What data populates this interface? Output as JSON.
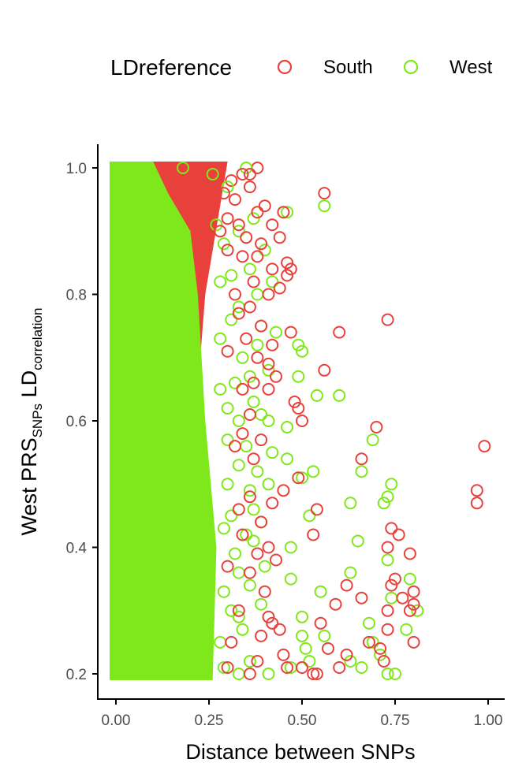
{
  "chart_data": {
    "type": "scatter",
    "xlabel": "Distance between SNPs",
    "ylabel": {
      "prefix": "West PRS",
      "prefix_sub": "SNPs",
      "main": " LD",
      "main_sub": "correlation"
    },
    "xlim": [
      0,
      1
    ],
    "ylim": [
      0.2,
      1.0
    ],
    "x_ticks": [
      "0.00",
      "0.25",
      "0.50",
      "0.75",
      "1.00"
    ],
    "x_tick_values": [
      0,
      0.25,
      0.5,
      0.75,
      1.0
    ],
    "y_ticks": [
      "0.2",
      "0.4",
      "0.6",
      "0.8",
      "1.0"
    ],
    "y_tick_values": [
      0.2,
      0.4,
      0.6,
      0.8,
      1.0
    ],
    "grid": false,
    "legend": {
      "title": "LDreference",
      "position": "top",
      "entries": [
        {
          "label": "South",
          "color": "#e8413c"
        },
        {
          "label": "West",
          "color": "#7fe81a"
        }
      ]
    },
    "series": [
      {
        "name": "South",
        "color": "#e8413c",
        "points": [
          [
            0.38,
            1.0
          ],
          [
            0.36,
            0.99
          ],
          [
            0.34,
            0.99
          ],
          [
            0.31,
            0.98
          ],
          [
            0.36,
            0.97
          ],
          [
            0.29,
            0.96
          ],
          [
            0.56,
            0.96
          ],
          [
            0.32,
            0.95
          ],
          [
            0.4,
            0.94
          ],
          [
            0.38,
            0.93
          ],
          [
            0.45,
            0.93
          ],
          [
            0.3,
            0.92
          ],
          [
            0.33,
            0.91
          ],
          [
            0.42,
            0.91
          ],
          [
            0.28,
            0.9
          ],
          [
            0.44,
            0.89
          ],
          [
            0.35,
            0.89
          ],
          [
            0.39,
            0.88
          ],
          [
            0.3,
            0.87
          ],
          [
            0.34,
            0.86
          ],
          [
            0.38,
            0.86
          ],
          [
            0.46,
            0.85
          ],
          [
            0.47,
            0.84
          ],
          [
            0.42,
            0.84
          ],
          [
            0.46,
            0.83
          ],
          [
            0.37,
            0.82
          ],
          [
            0.44,
            0.81
          ],
          [
            0.32,
            0.8
          ],
          [
            0.41,
            0.8
          ],
          [
            0.36,
            0.78
          ],
          [
            0.33,
            0.77
          ],
          [
            0.73,
            0.76
          ],
          [
            0.39,
            0.75
          ],
          [
            0.47,
            0.74
          ],
          [
            0.6,
            0.74
          ],
          [
            0.35,
            0.73
          ],
          [
            0.42,
            0.72
          ],
          [
            0.3,
            0.71
          ],
          [
            0.38,
            0.7
          ],
          [
            0.41,
            0.69
          ],
          [
            0.56,
            0.68
          ],
          [
            0.43,
            0.67
          ],
          [
            0.37,
            0.66
          ],
          [
            0.34,
            0.65
          ],
          [
            0.41,
            0.65
          ],
          [
            0.48,
            0.63
          ],
          [
            0.49,
            0.62
          ],
          [
            0.5,
            0.6
          ],
          [
            0.36,
            0.61
          ],
          [
            0.7,
            0.59
          ],
          [
            0.34,
            0.58
          ],
          [
            0.39,
            0.57
          ],
          [
            0.32,
            0.56
          ],
          [
            0.66,
            0.54
          ],
          [
            0.37,
            0.54
          ],
          [
            0.99,
            0.56
          ],
          [
            0.49,
            0.51
          ],
          [
            0.45,
            0.49
          ],
          [
            0.97,
            0.49
          ],
          [
            0.97,
            0.47
          ],
          [
            0.36,
            0.48
          ],
          [
            0.42,
            0.47
          ],
          [
            0.33,
            0.46
          ],
          [
            0.54,
            0.46
          ],
          [
            0.39,
            0.44
          ],
          [
            0.34,
            0.42
          ],
          [
            0.53,
            0.42
          ],
          [
            0.74,
            0.43
          ],
          [
            0.76,
            0.42
          ],
          [
            0.73,
            0.4
          ],
          [
            0.79,
            0.39
          ],
          [
            0.41,
            0.4
          ],
          [
            0.38,
            0.39
          ],
          [
            0.43,
            0.38
          ],
          [
            0.3,
            0.37
          ],
          [
            0.36,
            0.36
          ],
          [
            0.75,
            0.35
          ],
          [
            0.74,
            0.34
          ],
          [
            0.62,
            0.34
          ],
          [
            0.4,
            0.33
          ],
          [
            0.8,
            0.33
          ],
          [
            0.77,
            0.32
          ],
          [
            0.66,
            0.32
          ],
          [
            0.8,
            0.31
          ],
          [
            0.59,
            0.31
          ],
          [
            0.33,
            0.3
          ],
          [
            0.73,
            0.3
          ],
          [
            0.79,
            0.3
          ],
          [
            0.41,
            0.29
          ],
          [
            0.42,
            0.28
          ],
          [
            0.55,
            0.28
          ],
          [
            0.73,
            0.27
          ],
          [
            0.44,
            0.27
          ],
          [
            0.39,
            0.26
          ],
          [
            0.8,
            0.25
          ],
          [
            0.68,
            0.25
          ],
          [
            0.31,
            0.25
          ],
          [
            0.71,
            0.24
          ],
          [
            0.57,
            0.24
          ],
          [
            0.45,
            0.23
          ],
          [
            0.62,
            0.23
          ],
          [
            0.38,
            0.22
          ],
          [
            0.5,
            0.21
          ],
          [
            0.54,
            0.2
          ],
          [
            0.46,
            0.21
          ],
          [
            0.6,
            0.21
          ],
          [
            0.72,
            0.22
          ],
          [
            0.36,
            0.2
          ],
          [
            0.3,
            0.21
          ],
          [
            0.53,
            0.2
          ]
        ]
      },
      {
        "name": "West",
        "color": "#7fe81a",
        "points": [
          [
            0.35,
            1.0
          ],
          [
            0.26,
            0.99
          ],
          [
            0.18,
            1.0
          ],
          [
            0.3,
            0.97
          ],
          [
            0.37,
            0.92
          ],
          [
            0.56,
            0.94
          ],
          [
            0.46,
            0.93
          ],
          [
            0.27,
            0.91
          ],
          [
            0.33,
            0.9
          ],
          [
            0.29,
            0.88
          ],
          [
            0.4,
            0.87
          ],
          [
            0.36,
            0.84
          ],
          [
            0.31,
            0.83
          ],
          [
            0.28,
            0.82
          ],
          [
            0.42,
            0.82
          ],
          [
            0.38,
            0.8
          ],
          [
            0.33,
            0.78
          ],
          [
            0.31,
            0.76
          ],
          [
            0.39,
            0.75
          ],
          [
            0.43,
            0.74
          ],
          [
            0.28,
            0.73
          ],
          [
            0.49,
            0.72
          ],
          [
            0.5,
            0.71
          ],
          [
            0.38,
            0.72
          ],
          [
            0.34,
            0.7
          ],
          [
            0.41,
            0.68
          ],
          [
            0.36,
            0.67
          ],
          [
            0.49,
            0.67
          ],
          [
            0.32,
            0.66
          ],
          [
            0.28,
            0.65
          ],
          [
            0.54,
            0.64
          ],
          [
            0.6,
            0.64
          ],
          [
            0.37,
            0.63
          ],
          [
            0.3,
            0.62
          ],
          [
            0.39,
            0.61
          ],
          [
            0.33,
            0.6
          ],
          [
            0.46,
            0.59
          ],
          [
            0.41,
            0.6
          ],
          [
            0.69,
            0.57
          ],
          [
            0.3,
            0.57
          ],
          [
            0.35,
            0.56
          ],
          [
            0.42,
            0.55
          ],
          [
            0.46,
            0.54
          ],
          [
            0.33,
            0.53
          ],
          [
            0.38,
            0.52
          ],
          [
            0.53,
            0.52
          ],
          [
            0.5,
            0.51
          ],
          [
            0.66,
            0.52
          ],
          [
            0.3,
            0.5
          ],
          [
            0.41,
            0.5
          ],
          [
            0.36,
            0.49
          ],
          [
            0.74,
            0.5
          ],
          [
            0.73,
            0.48
          ],
          [
            0.72,
            0.47
          ],
          [
            0.63,
            0.47
          ],
          [
            0.37,
            0.46
          ],
          [
            0.52,
            0.45
          ],
          [
            0.31,
            0.45
          ],
          [
            0.39,
            0.44
          ],
          [
            0.29,
            0.43
          ],
          [
            0.35,
            0.42
          ],
          [
            0.65,
            0.41
          ],
          [
            0.37,
            0.41
          ],
          [
            0.47,
            0.4
          ],
          [
            0.32,
            0.39
          ],
          [
            0.73,
            0.38
          ],
          [
            0.4,
            0.37
          ],
          [
            0.33,
            0.36
          ],
          [
            0.63,
            0.36
          ],
          [
            0.47,
            0.35
          ],
          [
            0.79,
            0.35
          ],
          [
            0.36,
            0.34
          ],
          [
            0.29,
            0.33
          ],
          [
            0.55,
            0.33
          ],
          [
            0.74,
            0.32
          ],
          [
            0.39,
            0.31
          ],
          [
            0.31,
            0.3
          ],
          [
            0.81,
            0.3
          ],
          [
            0.33,
            0.29
          ],
          [
            0.5,
            0.29
          ],
          [
            0.68,
            0.28
          ],
          [
            0.78,
            0.27
          ],
          [
            0.34,
            0.27
          ],
          [
            0.56,
            0.26
          ],
          [
            0.5,
            0.26
          ],
          [
            0.28,
            0.25
          ],
          [
            0.69,
            0.25
          ],
          [
            0.51,
            0.24
          ],
          [
            0.71,
            0.23
          ],
          [
            0.36,
            0.22
          ],
          [
            0.52,
            0.22
          ],
          [
            0.63,
            0.22
          ],
          [
            0.29,
            0.21
          ],
          [
            0.66,
            0.21
          ],
          [
            0.47,
            0.21
          ],
          [
            0.73,
            0.2
          ],
          [
            0.75,
            0.2
          ],
          [
            0.41,
            0.2
          ],
          [
            0.33,
            0.2
          ]
        ]
      }
    ],
    "dense_band": {
      "description_note": "",
      "south_x_max": 0.3,
      "west_x_max": 0.27
    }
  }
}
